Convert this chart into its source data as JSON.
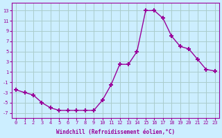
{
  "x": [
    0,
    1,
    2,
    3,
    4,
    5,
    6,
    7,
    8,
    9,
    10,
    11,
    12,
    13,
    14,
    15,
    16,
    17,
    18,
    19,
    20,
    21,
    22,
    23
  ],
  "y": [
    -2.5,
    -3.0,
    -3.5,
    -5.0,
    -6.0,
    -6.5,
    -6.5,
    -6.5,
    -6.5,
    -6.5,
    -4.5,
    -1.5,
    2.5,
    2.5,
    5.0,
    13.0,
    13.0,
    11.5,
    8.0,
    6.0,
    5.5,
    3.5,
    1.5,
    1.2
  ],
  "line_color": "#990099",
  "marker": "+",
  "marker_size": 5,
  "marker_linewidth": 1.5,
  "bg_color": "#cceeff",
  "grid_color": "#aacccc",
  "xlabel": "Windchill (Refroidissement éolien,°C)",
  "xlabel_color": "#990099",
  "tick_color": "#990099",
  "yticks": [
    -7,
    -5,
    -3,
    -1,
    1,
    3,
    5,
    7,
    9,
    11,
    13
  ],
  "xticks": [
    0,
    1,
    2,
    3,
    4,
    5,
    6,
    7,
    8,
    9,
    10,
    11,
    12,
    13,
    14,
    15,
    16,
    17,
    18,
    19,
    20,
    21,
    22,
    23
  ],
  "ylim": [
    -8,
    14.5
  ],
  "xlim": [
    -0.5,
    23.5
  ]
}
